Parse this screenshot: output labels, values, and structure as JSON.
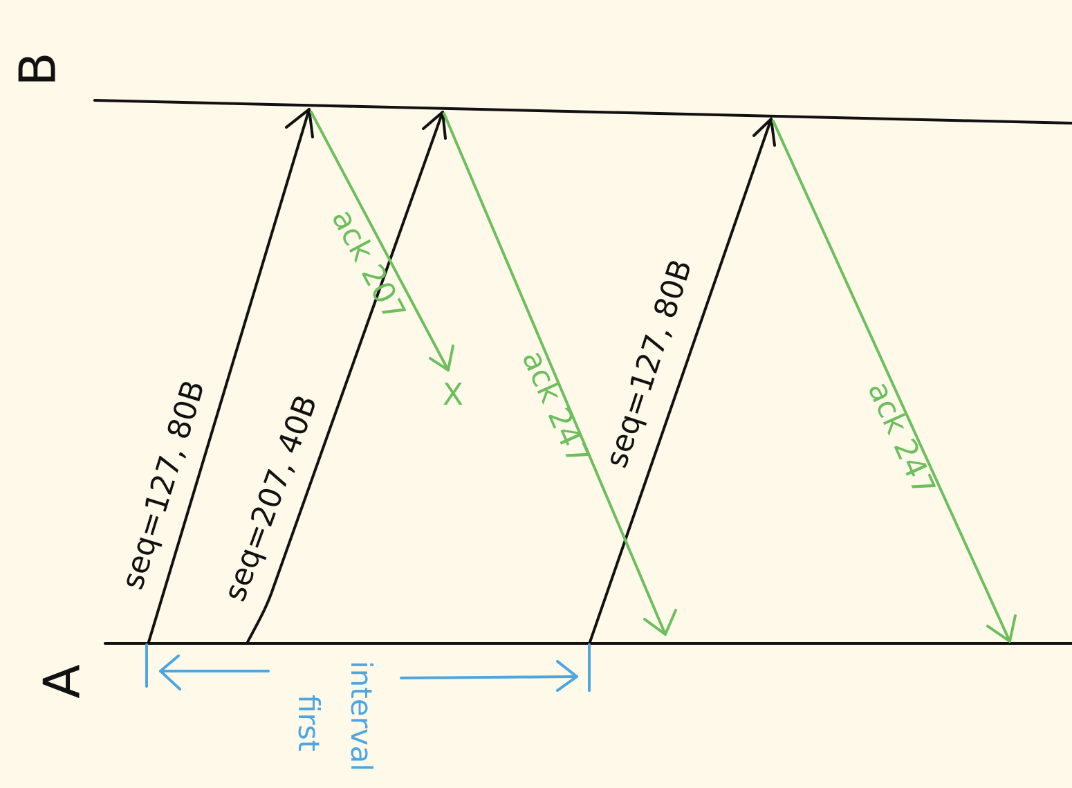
{
  "hosts": {
    "a": "A",
    "b": "B"
  },
  "segments": [
    {
      "label": "seq=127, 80B"
    },
    {
      "label": "seq=207, 40B"
    },
    {
      "label": "seq=127, 80B"
    }
  ],
  "acks": [
    {
      "label": "ack 207"
    },
    {
      "label": "ack 247"
    },
    {
      "label": "ack 247"
    }
  ],
  "lost_marker": "X",
  "interval": {
    "line1": "first",
    "line2": "interval"
  },
  "colors": {
    "background": "#fff9ea",
    "segment": "#111111",
    "ack": "#6cbf5c",
    "interval": "#4da6e0"
  }
}
